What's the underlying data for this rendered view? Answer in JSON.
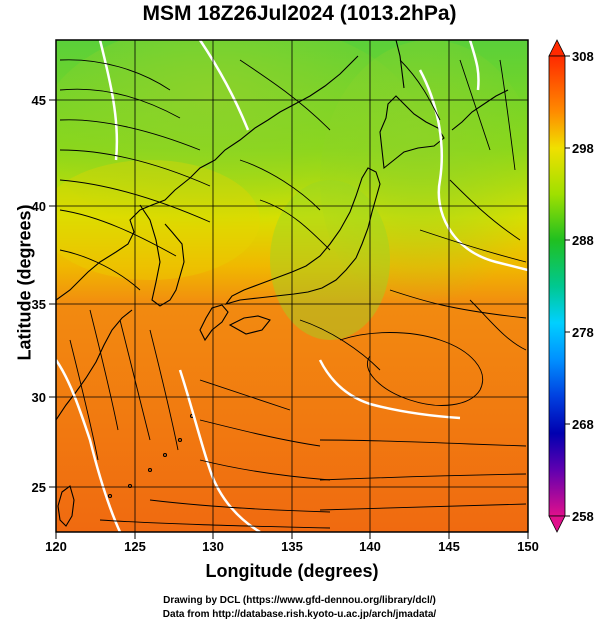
{
  "title": "MSM 18Z26Jul2024 (1013.2hPa)",
  "map": {
    "xlabel": "Longitude (degrees)",
    "ylabel": "Latitude  (degrees)",
    "lon_range": [
      120,
      150
    ],
    "lat_range": [
      22.4,
      47.6
    ],
    "lon_ticks": [
      "120",
      "125",
      "130",
      "135",
      "140",
      "145",
      "150"
    ],
    "lat_ticks": [
      "25",
      "30",
      "35",
      "40",
      "45"
    ],
    "field": "temperature",
    "vectors": "wind streamlines"
  },
  "colorbar": {
    "min": 258,
    "max": 308,
    "labels": [
      "308",
      "298",
      "288",
      "278",
      "268",
      "258"
    ],
    "colors": [
      "#e0007f",
      "#0000b0",
      "#0060ff",
      "#00c8ff",
      "#00d080",
      "#20c000",
      "#a0e000",
      "#e0e000",
      "#ffb000",
      "#ff7000",
      "#ff3000"
    ]
  },
  "credits": [
    "Drawing by DCL (https://www.gfd-dennou.org/library/dcl/)",
    "Data from http://database.rish.kyoto-u.ac.jp/arch/jmadata/"
  ]
}
